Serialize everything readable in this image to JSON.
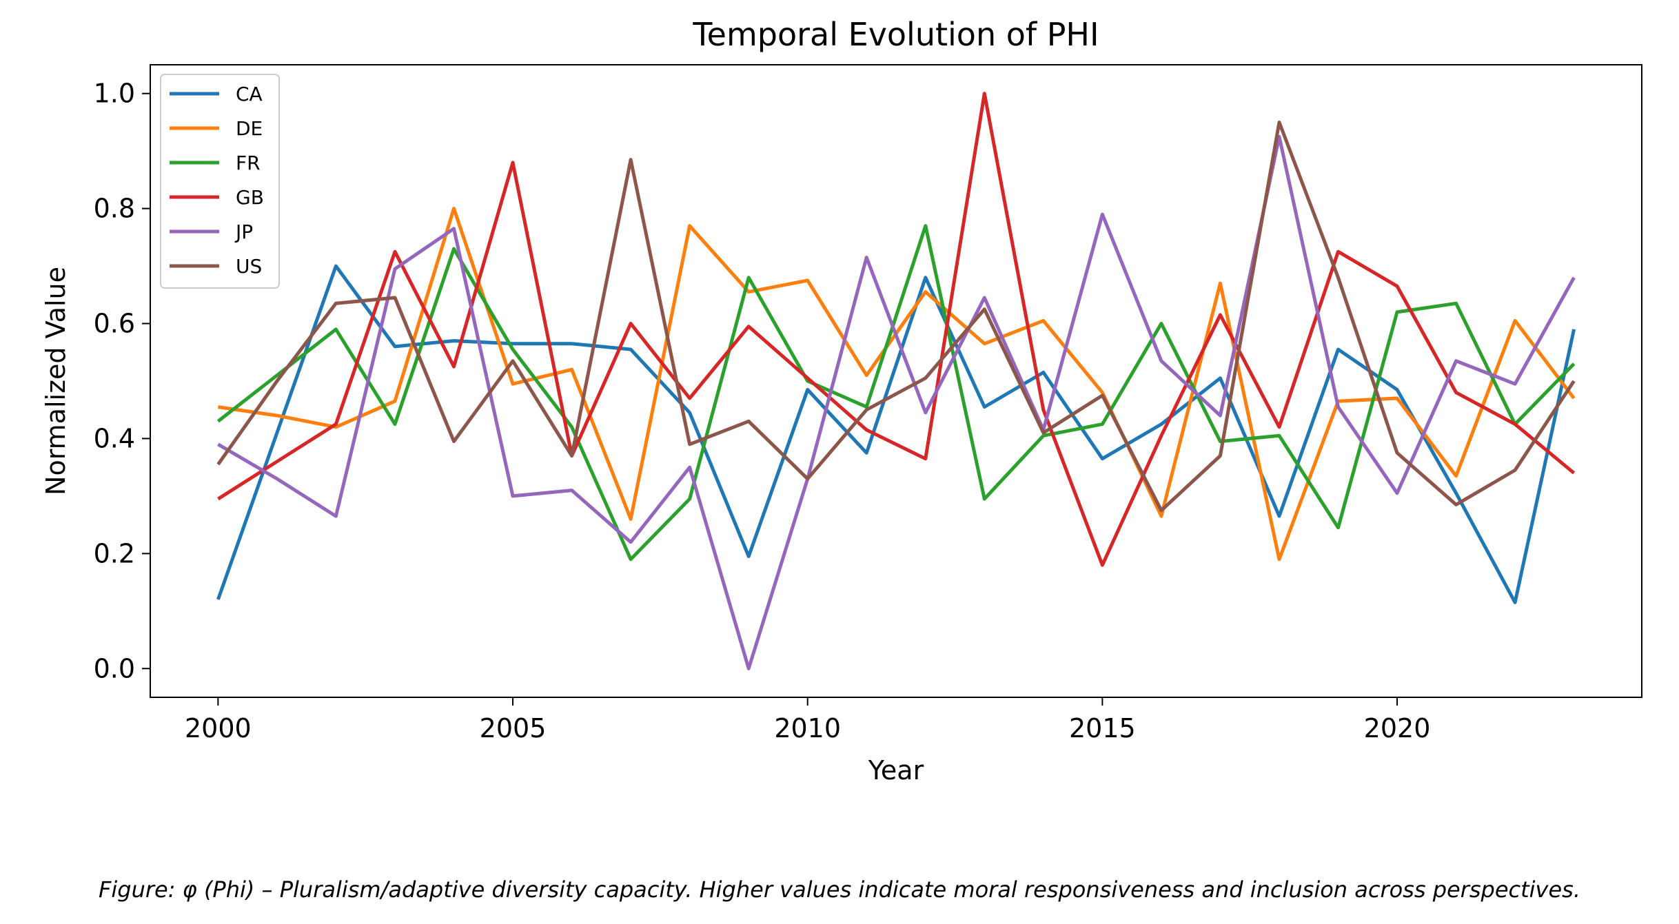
{
  "chart_data": {
    "type": "line",
    "title": "Temporal Evolution of PHI",
    "xlabel": "Year",
    "ylabel": "Normalized Value",
    "xlim": [
      1998.85,
      2024.15
    ],
    "ylim": [
      -0.05,
      1.05
    ],
    "xticks": [
      2000,
      2005,
      2010,
      2015,
      2020
    ],
    "yticks": [
      0.0,
      0.2,
      0.4,
      0.6,
      0.8,
      1.0
    ],
    "ytick_labels": [
      "0.0",
      "0.2",
      "0.4",
      "0.6",
      "0.8",
      "1.0"
    ],
    "grid": false,
    "legend_position": "top-left",
    "x": [
      2000,
      2001,
      2002,
      2003,
      2004,
      2005,
      2006,
      2007,
      2008,
      2009,
      2010,
      2011,
      2012,
      2013,
      2014,
      2015,
      2016,
      2017,
      2018,
      2019,
      2020,
      2021,
      2022,
      2023
    ],
    "series": [
      {
        "name": "CA",
        "color": "#1f77b4",
        "values": [
          0.12,
          0.41,
          0.7,
          0.56,
          0.57,
          0.565,
          0.565,
          0.555,
          0.445,
          0.195,
          0.485,
          0.375,
          0.68,
          0.455,
          0.515,
          0.365,
          0.425,
          0.505,
          0.265,
          0.555,
          0.485,
          0.305,
          0.115,
          0.59
        ]
      },
      {
        "name": "DE",
        "color": "#ff7f0e",
        "values": [
          0.455,
          0.44,
          0.42,
          0.465,
          0.8,
          0.495,
          0.52,
          0.26,
          0.77,
          0.655,
          0.675,
          0.51,
          0.655,
          0.565,
          0.605,
          0.48,
          0.265,
          0.67,
          0.19,
          0.465,
          0.47,
          0.335,
          0.605,
          0.47
        ]
      },
      {
        "name": "FR",
        "color": "#2ca02c",
        "values": [
          0.43,
          0.51,
          0.59,
          0.425,
          0.73,
          0.555,
          0.42,
          0.19,
          0.295,
          0.68,
          0.5,
          0.455,
          0.77,
          0.295,
          0.405,
          0.425,
          0.6,
          0.395,
          0.405,
          0.245,
          0.62,
          0.635,
          0.425,
          0.53
        ]
      },
      {
        "name": "GB",
        "color": "#d62728",
        "values": [
          0.295,
          0.36,
          0.425,
          0.725,
          0.525,
          0.88,
          0.37,
          0.6,
          0.47,
          0.595,
          0.505,
          0.415,
          0.365,
          1.0,
          0.45,
          0.18,
          0.405,
          0.615,
          0.42,
          0.725,
          0.665,
          0.48,
          0.425,
          0.34
        ]
      },
      {
        "name": "JP",
        "color": "#9467bd",
        "values": [
          0.39,
          0.33,
          0.265,
          0.695,
          0.765,
          0.3,
          0.31,
          0.22,
          0.35,
          0.0,
          0.33,
          0.715,
          0.445,
          0.645,
          0.415,
          0.79,
          0.535,
          0.44,
          0.925,
          0.455,
          0.305,
          0.535,
          0.495,
          0.68
        ]
      },
      {
        "name": "US",
        "color": "#8c564b",
        "values": [
          0.355,
          0.5,
          0.635,
          0.645,
          0.395,
          0.535,
          0.37,
          0.885,
          0.39,
          0.43,
          0.33,
          0.45,
          0.505,
          0.625,
          0.41,
          0.475,
          0.275,
          0.37,
          0.95,
          0.68,
          0.375,
          0.285,
          0.345,
          0.5
        ]
      }
    ]
  },
  "caption": "Figure: φ (Phi) – Pluralism/adaptive diversity capacity. Higher values indicate moral responsiveness and inclusion across perspectives."
}
